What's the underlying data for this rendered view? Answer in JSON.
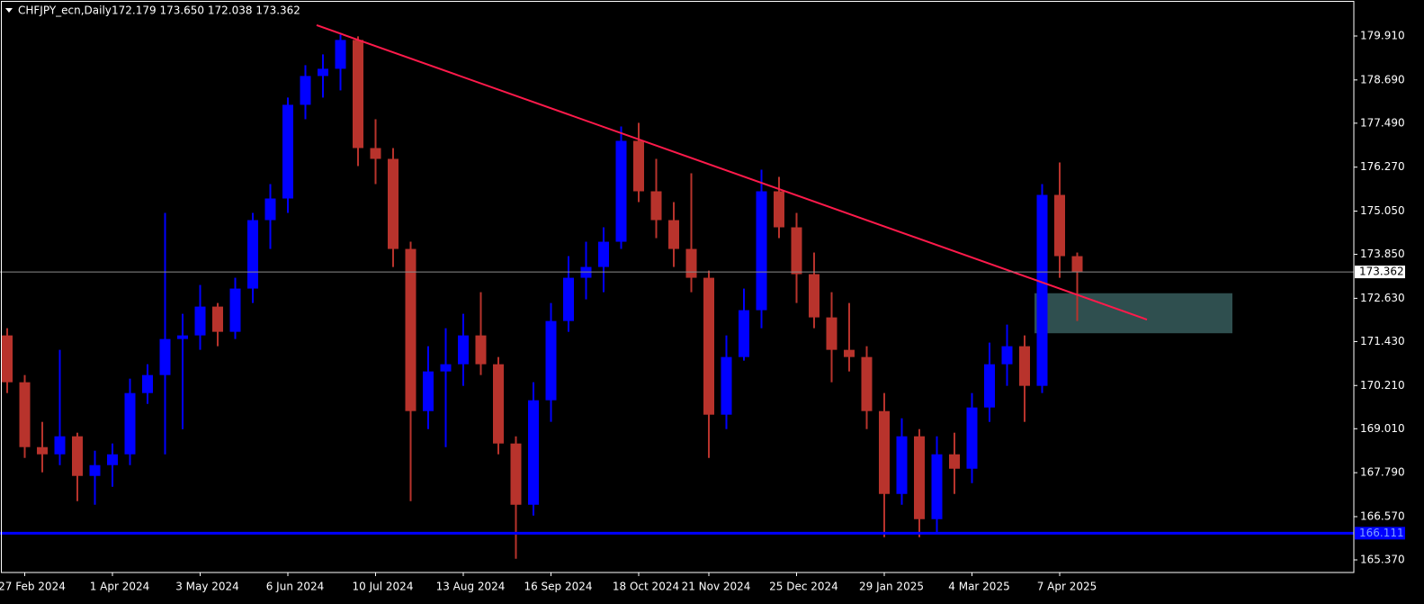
{
  "chart_data": {
    "type": "candlestick",
    "title": "CHFJPY_ecn,Daily",
    "quote": "172.179 173.650 172.038 173.362",
    "categories": [
      null,
      "27 Feb 2024",
      null,
      null,
      null,
      null,
      "1 Apr 2024",
      null,
      null,
      null,
      null,
      "3 May 2024",
      null,
      null,
      null,
      null,
      "6 Jun 2024",
      null,
      null,
      null,
      null,
      "10 Jul 2024",
      null,
      null,
      null,
      null,
      "13 Aug 2024",
      null,
      null,
      null,
      null,
      "16 Sep 2024",
      null,
      null,
      null,
      null,
      "18 Oct 2024",
      null,
      null,
      null,
      "21 Nov 2024",
      null,
      null,
      null,
      null,
      "25 Dec 2024",
      null,
      null,
      null,
      null,
      "29 Jan 2025",
      null,
      null,
      null,
      null,
      "4 Mar 2025",
      null,
      null,
      null,
      null,
      "7 Apr 2025",
      null
    ],
    "open": [
      171.6,
      170.3,
      168.5,
      168.3,
      168.8,
      167.7,
      168.0,
      168.3,
      170.0,
      170.5,
      171.5,
      171.6,
      172.4,
      171.7,
      172.9,
      174.8,
      175.4,
      178.0,
      178.8,
      179.0,
      179.8,
      176.8,
      176.5,
      174.0,
      169.5,
      170.6,
      170.8,
      171.6,
      170.8,
      168.6,
      166.9,
      169.8,
      172.0,
      173.2,
      173.5,
      174.2,
      177.0,
      175.6,
      174.8,
      174.0,
      173.2,
      169.4,
      171.0,
      172.3,
      175.6,
      174.6,
      173.3,
      172.1,
      171.2,
      171.0,
      169.5,
      167.2,
      168.8,
      166.5,
      168.3,
      167.9,
      169.6,
      170.8,
      171.3,
      170.2,
      175.5,
      173.8
    ],
    "high": [
      171.8,
      170.5,
      169.2,
      171.2,
      168.9,
      168.4,
      168.6,
      170.4,
      170.8,
      175.0,
      172.2,
      173.0,
      172.5,
      173.2,
      175.0,
      175.8,
      178.2,
      179.1,
      179.4,
      179.95,
      179.9,
      177.6,
      176.8,
      174.2,
      171.3,
      171.8,
      172.2,
      172.8,
      171.0,
      168.8,
      170.3,
      172.5,
      173.8,
      174.2,
      174.6,
      177.4,
      177.5,
      176.5,
      175.3,
      176.1,
      173.4,
      171.6,
      172.9,
      176.2,
      176.0,
      175.0,
      173.9,
      172.8,
      172.5,
      171.3,
      170.0,
      169.3,
      169.0,
      168.8,
      168.9,
      170.0,
      171.4,
      171.9,
      171.6,
      175.8,
      176.4,
      173.9
    ],
    "low": [
      170.0,
      168.2,
      167.8,
      168.0,
      167.0,
      166.9,
      167.4,
      168.0,
      169.7,
      168.3,
      169.0,
      171.2,
      171.3,
      171.5,
      172.5,
      174.0,
      175.0,
      177.6,
      178.2,
      178.4,
      176.3,
      175.8,
      173.5,
      167.0,
      169.0,
      168.5,
      170.2,
      170.5,
      168.3,
      165.4,
      166.6,
      169.2,
      171.7,
      172.6,
      172.8,
      174.0,
      175.3,
      174.3,
      173.5,
      172.8,
      168.2,
      169.0,
      170.9,
      171.8,
      174.3,
      172.5,
      171.8,
      170.3,
      170.6,
      169.0,
      166.0,
      166.9,
      166.0,
      166.1,
      167.2,
      167.5,
      169.2,
      170.2,
      169.2,
      170.0,
      173.2,
      172.0
    ],
    "close": [
      170.3,
      168.5,
      168.3,
      168.8,
      167.7,
      168.0,
      168.3,
      170.0,
      170.5,
      171.5,
      171.6,
      172.4,
      171.7,
      172.9,
      174.8,
      175.4,
      178.0,
      178.8,
      179.0,
      179.8,
      176.8,
      176.5,
      174.0,
      169.5,
      170.6,
      170.8,
      171.6,
      170.8,
      168.6,
      166.9,
      169.8,
      172.0,
      173.2,
      173.5,
      174.2,
      177.0,
      175.6,
      174.8,
      174.0,
      173.2,
      169.4,
      171.0,
      172.3,
      175.6,
      174.6,
      173.3,
      172.1,
      171.2,
      171.0,
      169.5,
      167.2,
      168.8,
      166.5,
      168.3,
      167.9,
      169.6,
      170.8,
      171.3,
      170.2,
      175.5,
      173.8,
      173.362
    ],
    "up_color": "#0000ff",
    "down_color": "#b8332c",
    "ylim": [
      165.02,
      180.909
    ],
    "yticks": [
      {
        "value": 179.91,
        "label": "179.910"
      },
      {
        "value": 178.69,
        "label": "178.690"
      },
      {
        "value": 177.49,
        "label": "177.490"
      },
      {
        "value": 176.27,
        "label": "176.270"
      },
      {
        "value": 175.05,
        "label": "175.050"
      },
      {
        "value": 173.85,
        "label": "173.850"
      },
      {
        "value": 172.63,
        "label": "172.630"
      },
      {
        "value": 171.43,
        "label": "171.430"
      },
      {
        "value": 170.21,
        "label": "170.210"
      },
      {
        "value": 169.01,
        "label": "169.010"
      },
      {
        "value": 167.79,
        "label": "167.790"
      },
      {
        "value": 166.57,
        "label": "166.570"
      },
      {
        "value": 165.37,
        "label": "165.370"
      }
    ],
    "current_price": {
      "value": 173.362,
      "color": "#8c8c8c"
    },
    "support": {
      "value": 166.111,
      "color": "#0000ff"
    },
    "trendline": {
      "start": 180.21,
      "end": 172.04,
      "color": "#ff1a4b"
    },
    "zone": {
      "top": 172.77,
      "bottom": 171.66,
      "color": "#2f4f4f"
    }
  }
}
